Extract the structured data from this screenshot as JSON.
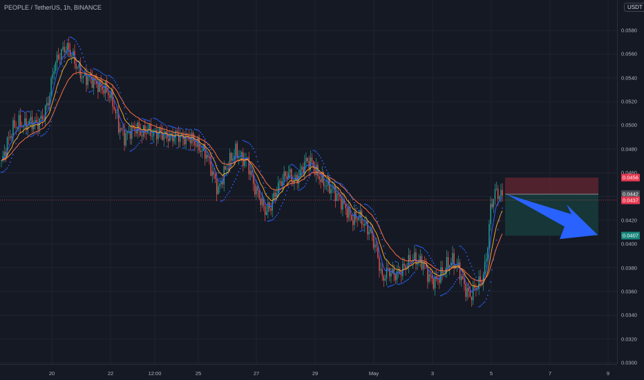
{
  "header": {
    "symbol_line": "PEOPLE / TetherUS, 1h, BINANCE",
    "currency": "USDT"
  },
  "colors": {
    "background": "#151924",
    "grid": "#1f2431",
    "up": "#26a69a",
    "down": "#ef5350",
    "ema_fast": "#2962ff",
    "ema_mid": "#f5a623",
    "ema_slow": "#ff7043",
    "sar": "#2962ff",
    "stop_zone": "#5a2430",
    "target_zone": "#163a3a",
    "arrow": "#2962ff"
  },
  "chart_data": {
    "type": "candlestick",
    "yticks": [
      "0.0580",
      "0.0560",
      "0.0540",
      "0.0520",
      "0.0500",
      "0.0480",
      "0.0460",
      "0.0440",
      "0.0420",
      "0.0400",
      "0.0380",
      "0.0360",
      "0.0340",
      "0.0320",
      "0.0300"
    ],
    "xticks": [
      "20",
      "22",
      "12:00",
      "25",
      "27",
      "29",
      "May",
      "3",
      "5",
      "7",
      "9"
    ],
    "ylim": [
      0.03,
      0.0588
    ],
    "price_path": [
      [
        0,
        0.0468
      ],
      [
        4,
        0.0485
      ],
      [
        8,
        0.0498
      ],
      [
        12,
        0.0502
      ],
      [
        16,
        0.05
      ],
      [
        20,
        0.0503
      ],
      [
        24,
        0.0501
      ],
      [
        28,
        0.0506
      ],
      [
        32,
        0.052
      ],
      [
        36,
        0.055
      ],
      [
        40,
        0.056
      ],
      [
        44,
        0.0566
      ],
      [
        48,
        0.056
      ],
      [
        52,
        0.0548
      ],
      [
        56,
        0.054
      ],
      [
        60,
        0.054
      ],
      [
        64,
        0.0536
      ],
      [
        68,
        0.0532
      ],
      [
        72,
        0.053
      ],
      [
        76,
        0.052
      ],
      [
        80,
        0.05
      ],
      [
        84,
        0.049
      ],
      [
        88,
        0.0495
      ],
      [
        92,
        0.0498
      ],
      [
        96,
        0.0493
      ],
      [
        100,
        0.0497
      ],
      [
        104,
        0.0492
      ],
      [
        108,
        0.0494
      ],
      [
        112,
        0.0491
      ],
      [
        116,
        0.049
      ],
      [
        120,
        0.0492
      ],
      [
        124,
        0.0489
      ],
      [
        128,
        0.049
      ],
      [
        132,
        0.0486
      ],
      [
        136,
        0.048
      ],
      [
        140,
        0.0476
      ],
      [
        144,
        0.046
      ],
      [
        148,
        0.0445
      ],
      [
        152,
        0.046
      ],
      [
        156,
        0.047
      ],
      [
        160,
        0.0478
      ],
      [
        164,
        0.0472
      ],
      [
        168,
        0.047
      ],
      [
        172,
        0.045
      ],
      [
        176,
        0.044
      ],
      [
        180,
        0.0428
      ],
      [
        184,
        0.0432
      ],
      [
        188,
        0.0446
      ],
      [
        192,
        0.0455
      ],
      [
        196,
        0.046
      ],
      [
        200,
        0.0452
      ],
      [
        204,
        0.046
      ],
      [
        208,
        0.047
      ],
      [
        212,
        0.0468
      ],
      [
        216,
        0.0458
      ],
      [
        220,
        0.0452
      ],
      [
        224,
        0.0448
      ],
      [
        228,
        0.0443
      ],
      [
        232,
        0.0436
      ],
      [
        236,
        0.0428
      ],
      [
        240,
        0.042
      ],
      [
        244,
        0.0424
      ],
      [
        248,
        0.0416
      ],
      [
        252,
        0.041
      ],
      [
        256,
        0.0395
      ],
      [
        260,
        0.037
      ],
      [
        264,
        0.0378
      ],
      [
        268,
        0.0374
      ],
      [
        272,
        0.0376
      ],
      [
        276,
        0.0382
      ],
      [
        280,
        0.0388
      ],
      [
        284,
        0.0386
      ],
      [
        288,
        0.0384
      ],
      [
        292,
        0.0372
      ],
      [
        296,
        0.0368
      ],
      [
        300,
        0.0374
      ],
      [
        304,
        0.0382
      ],
      [
        308,
        0.0386
      ],
      [
        312,
        0.038
      ],
      [
        316,
        0.0364
      ],
      [
        320,
        0.0356
      ],
      [
        324,
        0.0364
      ],
      [
        328,
        0.037
      ],
      [
        330,
        0.038
      ],
      [
        332,
        0.04
      ],
      [
        334,
        0.043
      ],
      [
        336,
        0.044
      ],
      [
        338,
        0.0445
      ],
      [
        340,
        0.044
      ],
      [
        342,
        0.0442
      ]
    ],
    "trade": {
      "entry": 0.0442,
      "stop": 0.0456,
      "target": 0.0407,
      "last": 0.0437,
      "labels": {
        "stop": "0.0456",
        "entry": "0.0442",
        "last": "0.0437",
        "target": "0.0407"
      }
    }
  }
}
